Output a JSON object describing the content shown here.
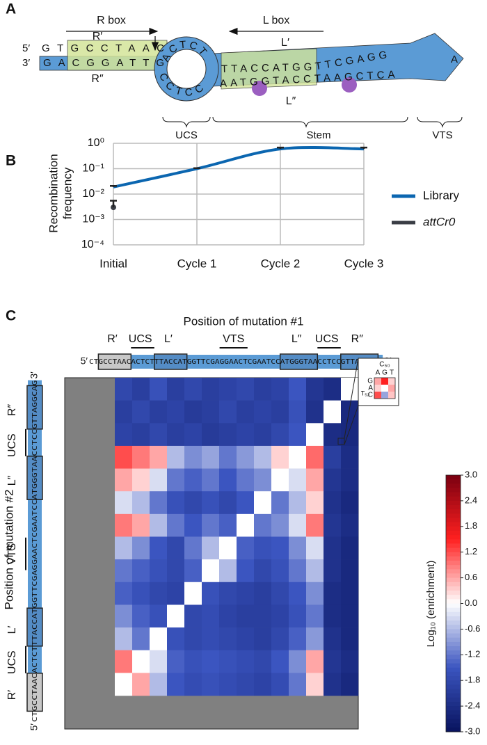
{
  "panel_a": {
    "label": "A",
    "r_box": "R box",
    "l_box": "L box",
    "five_prime": "5′",
    "three_prime": "3′",
    "top_strand": "GTGCCTAAC",
    "bottom_strand": "GACGGATTG",
    "loop_top": "ACTCT",
    "loop_bottom": "CCTCC",
    "stem_top": "TTACCATGGTTCGAGG",
    "stem_bottom": "AATGGTACCTAAGCTCA",
    "tip": "A",
    "r_prime": "R′",
    "r_dprime": "R″",
    "l_prime": "L′",
    "l_dprime": "L″",
    "ucs": "UCS",
    "stem": "Stem",
    "vts": "VTS"
  },
  "chart_data": [
    {
      "panel_label": "B",
      "type": "line",
      "categories": [
        "Initial",
        "Cycle 1",
        "Cycle 2",
        "Cycle 3"
      ],
      "y_label": [
        "Recombination",
        "frequency"
      ],
      "log_y": true,
      "grid": true,
      "legend": "right",
      "ylim": [
        0.0001,
        1
      ],
      "yticks": [
        {
          "value": 0.0001,
          "label": "10⁻⁴"
        },
        {
          "value": 0.001,
          "label": "10⁻³"
        },
        {
          "value": 0.01,
          "label": "10⁻²"
        },
        {
          "value": 0.1,
          "label": "10⁻¹"
        },
        {
          "value": 1,
          "label": "10⁰"
        }
      ],
      "series": [
        {
          "name": "Library",
          "color": "#0b66b0",
          "values": [
            0.019,
            0.1,
            0.6,
            0.6
          ],
          "errors": [
            0.002,
            0.005,
            0.08,
            0.08
          ]
        },
        {
          "name": "attCr0",
          "color": "#3a3d45",
          "values": [
            0.003,
            null,
            null,
            null
          ],
          "errors": [
            0.0025,
            null,
            null,
            null
          ]
        }
      ]
    },
    {
      "panel_label": "C",
      "type": "heatmap",
      "title": "Position of mutation #1",
      "y_label": "Position of mutation #2",
      "sequence": "CTGCCTAACACTCTTTACCATGGTTCGAGGAACTCGAATCCATGGGTAACCTCCGTTAGGCAG",
      "five_prime": "5′",
      "three_prime": "3′",
      "regions": [
        "R′",
        "UCS",
        "L′",
        "VTS",
        "L″",
        "UCS",
        "R″"
      ],
      "zlim": [
        -3,
        3
      ],
      "zticks": [
        {
          "value": 3,
          "label": "3.0"
        },
        2.4,
        1.8,
        1.2,
        0.6,
        {
          "value": 0,
          "label": "0.0"
        },
        -0.6,
        -1.2,
        -1.8,
        -2.4,
        {
          "value": -3,
          "label": "-3.0"
        }
      ],
      "colorbar_label": "Log₁₀ (enrichment)",
      "colormap": [
        "#08135e",
        "#3b55c0",
        "#ffffff",
        "#ff2020",
        "#7a0010"
      ],
      "values": [
        [
          -1.8,
          -2.0,
          -1.6,
          -2.0,
          -1.8,
          -2.0,
          -1.9,
          -1.8,
          -2.0,
          -1.9,
          -1.5,
          -2.2,
          -2.4,
          0
        ],
        [
          -2.0,
          -1.8,
          -2.0,
          -1.9,
          -2.1,
          -2.0,
          -1.8,
          -2.0,
          -1.9,
          -2.0,
          -1.6,
          -2.3,
          0,
          -2.5
        ],
        [
          -1.9,
          -2.0,
          -1.8,
          -2.0,
          -1.9,
          -2.1,
          -2.0,
          -1.9,
          -2.0,
          -1.8,
          -1.5,
          0,
          -2.4,
          -2.5
        ],
        [
          1.2,
          0.9,
          0.6,
          -0.6,
          -1.0,
          -0.8,
          -1.2,
          -0.9,
          -0.6,
          0.3,
          0,
          1.0,
          -2.0,
          -2.4
        ],
        [
          0.6,
          0.3,
          -0.3,
          -1.2,
          -1.4,
          -1.2,
          -1.5,
          -1.2,
          -1.0,
          0,
          -0.3,
          0.6,
          -2.2,
          -2.4
        ],
        [
          -0.3,
          -0.6,
          -1.2,
          -1.6,
          -1.8,
          -1.6,
          -1.8,
          -1.5,
          0,
          -1.2,
          -0.6,
          0.3,
          -2.3,
          -2.5
        ],
        [
          0.9,
          0.6,
          -0.6,
          -1.2,
          -1.5,
          -1.2,
          -1.4,
          0,
          -1.2,
          -1.0,
          -0.3,
          0.9,
          -2.2,
          -2.4
        ],
        [
          -0.6,
          -1.0,
          -1.5,
          -1.8,
          -1.2,
          -0.6,
          0,
          -1.4,
          -1.6,
          -1.5,
          -1.0,
          -0.3,
          -2.3,
          -2.5
        ],
        [
          -1.2,
          -1.4,
          -1.6,
          -1.8,
          -1.4,
          0,
          -0.6,
          -1.5,
          -1.8,
          -1.6,
          -1.2,
          -0.6,
          -2.3,
          -2.5
        ],
        [
          -1.4,
          -1.6,
          -1.8,
          -1.9,
          0,
          -1.6,
          -1.8,
          -1.9,
          -2.0,
          -1.8,
          -1.5,
          -1.0,
          -2.4,
          -2.5
        ],
        [
          -1.0,
          -1.4,
          -1.6,
          0,
          -1.8,
          -1.7,
          -1.9,
          -2.0,
          -2.0,
          -1.9,
          -1.6,
          -1.2,
          -2.4,
          -2.5
        ],
        [
          -0.6,
          -1.2,
          0,
          -1.6,
          -1.8,
          -1.7,
          -1.8,
          -1.9,
          -2.0,
          -1.8,
          -1.4,
          -0.9,
          -2.3,
          -2.5
        ],
        [
          0.9,
          0,
          -0.3,
          -1.4,
          -1.6,
          -1.5,
          -1.6,
          -1.7,
          -1.8,
          -1.5,
          -1.0,
          0.6,
          -2.2,
          -2.4
        ],
        [
          0,
          0.6,
          -0.6,
          -1.5,
          -1.7,
          -1.6,
          -1.7,
          -1.8,
          -1.9,
          -1.7,
          -1.2,
          0.3,
          -2.3,
          -2.5
        ]
      ],
      "inset": {
        "x_title": "C₅₀",
        "y_title": "T₅₂",
        "x_labels": [
          "A",
          "G",
          "T"
        ],
        "y_labels": [
          "G",
          "A",
          "C"
        ],
        "values": [
          [
            0.6,
            1.5,
            0.3
          ],
          [
            0.3,
            0,
            0.6
          ],
          [
            1.2,
            -0.8,
            0.4
          ]
        ]
      }
    }
  ]
}
